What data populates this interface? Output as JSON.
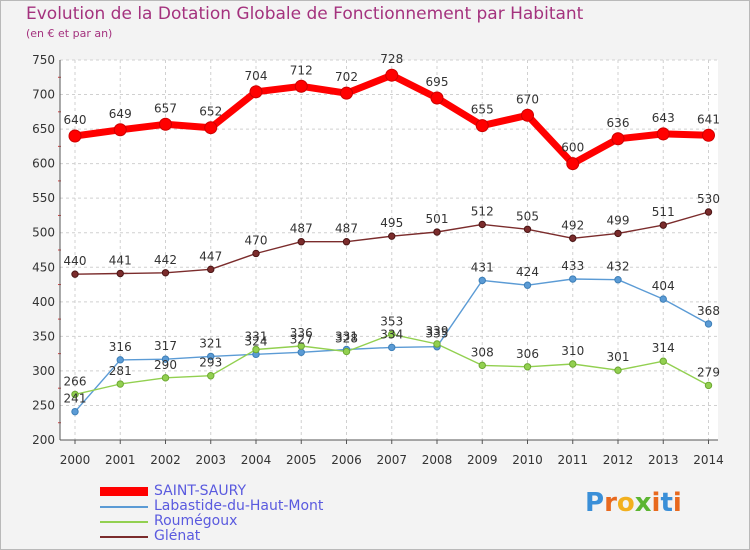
{
  "header": {
    "title": "Evolution de la Dotation Globale de Fonctionnement par Habitant",
    "subtitle": "(en € et par an)"
  },
  "logo": {
    "text": "Proxiti",
    "letters": [
      "P",
      "r",
      "o",
      "x",
      "i",
      "t",
      "i"
    ],
    "colors": [
      "#3a8fd8",
      "#e8691e",
      "#f2b01e",
      "#5cb531",
      "#e8691e",
      "#3a8fd8",
      "#e8691e"
    ]
  },
  "chart_data": {
    "type": "line",
    "title": "Evolution de la Dotation Globale de Fonctionnement par Habitant",
    "subtitle": "(en € et par an)",
    "x": [
      "2000",
      "2001",
      "2002",
      "2003",
      "2004",
      "2005",
      "2006",
      "2007",
      "2008",
      "2009",
      "2010",
      "2011",
      "2012",
      "2013",
      "2014"
    ],
    "y_ticks": [
      200,
      250,
      300,
      350,
      400,
      450,
      500,
      550,
      600,
      650,
      700,
      750
    ],
    "ylim": [
      200,
      750
    ],
    "grid": true,
    "legend_position": "bottom-left",
    "series": [
      {
        "name": "SAINT-SAURY",
        "color": "#ff0000",
        "values": [
          640,
          649,
          657,
          652,
          704,
          712,
          702,
          728,
          695,
          655,
          670,
          600,
          636,
          643,
          641
        ]
      },
      {
        "name": "Labastide-du-Haut-Mont",
        "color": "#5b9bd5",
        "values": [
          241,
          316,
          317,
          321,
          324,
          327,
          331,
          334,
          335,
          431,
          424,
          433,
          432,
          404,
          368
        ]
      },
      {
        "name": "Roumégoux",
        "color": "#92d050",
        "values": [
          266,
          281,
          290,
          293,
          331,
          336,
          328,
          353,
          339,
          308,
          306,
          310,
          301,
          314,
          279
        ]
      },
      {
        "name": "Glénat",
        "color": "#7b2c2c",
        "values": [
          440,
          441,
          442,
          447,
          470,
          487,
          487,
          495,
          501,
          512,
          505,
          492,
          499,
          511,
          530
        ]
      }
    ]
  }
}
